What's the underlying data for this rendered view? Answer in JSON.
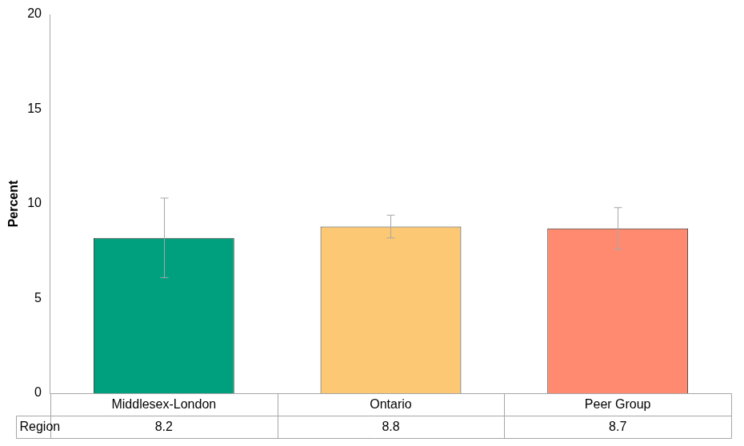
{
  "chart_data": {
    "type": "bar",
    "y_label": "Percent",
    "categories": [
      "Middlesex-London",
      "Ontario",
      "Peer Group"
    ],
    "series": [
      {
        "name": "Region",
        "values": [
          8.2,
          8.8,
          8.7
        ],
        "colors": [
          "#00a07e",
          "#fdc874",
          "#ff8a70"
        ],
        "error_low": [
          6.1,
          8.2,
          7.6
        ],
        "error_high": [
          10.3,
          9.4,
          9.8
        ]
      }
    ],
    "ylim": [
      0,
      20
    ],
    "yticks": [
      0,
      5,
      10,
      15,
      20
    ],
    "grid": false,
    "data_labels": true
  }
}
